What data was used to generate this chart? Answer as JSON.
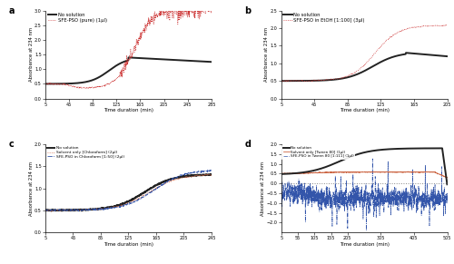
{
  "panel_a": {
    "title": "a",
    "xlabel": "Time duration (min)",
    "ylabel": "Absorbance at 234 nm",
    "xlim": [
      5,
      285
    ],
    "ylim": [
      0,
      3
    ],
    "xticks": [
      5,
      45,
      85,
      125,
      165,
      205,
      245,
      285
    ],
    "yticks": [
      0,
      0.5,
      1.0,
      1.5,
      2.0,
      2.5,
      3.0
    ],
    "lines": [
      {
        "label": "No solution",
        "color": "#222222",
        "lw": 1.4,
        "ls": "solid"
      },
      {
        "label": "SFE-PSO (pure) (1μl)",
        "color": "#cc3333",
        "lw": 0.6,
        "ls": "dotted"
      }
    ]
  },
  "panel_b": {
    "title": "b",
    "xlabel": "Time duration (min)",
    "ylabel": "Absorbance at 234 nm",
    "xlim": [
      5,
      205
    ],
    "ylim": [
      0,
      2.5
    ],
    "xticks": [
      5,
      45,
      85,
      125,
      165,
      205
    ],
    "yticks": [
      0,
      0.5,
      1.0,
      1.5,
      2.0,
      2.5
    ],
    "lines": [
      {
        "label": "No solution",
        "color": "#222222",
        "lw": 1.4,
        "ls": "solid"
      },
      {
        "label": "SFE-PSO in EtOH [1:100] (3μl)",
        "color": "#cc3333",
        "lw": 0.6,
        "ls": "dotted"
      }
    ]
  },
  "panel_c": {
    "title": "c",
    "xlabel": "Time duration (min)",
    "ylabel": "Absorbance at 234 nm",
    "xlim": [
      5,
      245
    ],
    "ylim": [
      0,
      2
    ],
    "xticks": [
      5,
      45,
      85,
      125,
      165,
      205,
      245
    ],
    "yticks": [
      0,
      0.5,
      1.0,
      1.5,
      2.0
    ],
    "lines": [
      {
        "label": "No solution",
        "color": "#222222",
        "lw": 1.4,
        "ls": "solid"
      },
      {
        "label": "Solvent only [Chloroform] (2μl)",
        "color": "#cc6644",
        "lw": 0.6,
        "ls": "dotted"
      },
      {
        "label": "SFE-PSO in Chloroform [1:50] (2μl)",
        "color": "#3355aa",
        "lw": 0.6,
        "ls": "dashdot"
      }
    ]
  },
  "panel_d": {
    "title": "d",
    "xlabel": "Time duration (min)",
    "ylabel": "Absorbance at 234 nm",
    "xlim": [
      5,
      505
    ],
    "ylim": [
      -2.5,
      2.0
    ],
    "xticks": [
      5,
      55,
      105,
      155,
      205,
      305,
      405,
      505
    ],
    "yticks": [
      -2.0,
      -1.5,
      -1.0,
      -0.5,
      0,
      0.5,
      1.0,
      1.5,
      2.0
    ],
    "lines": [
      {
        "label": "No solution",
        "color": "#222222",
        "lw": 1.4,
        "ls": "solid"
      },
      {
        "label": "Solvent only [Tween 80] (1μl)",
        "color": "#cc6644",
        "lw": 0.6,
        "ls": "solid"
      },
      {
        "label": "SFE-PSO in Tween 80 [1:111] (1μl)",
        "color": "#3355aa",
        "lw": 0.5,
        "ls": "dashdot"
      }
    ],
    "hline": 0.0,
    "hline_color": "#888888",
    "hline_ls": "dotted",
    "hline_lw": 0.7
  }
}
